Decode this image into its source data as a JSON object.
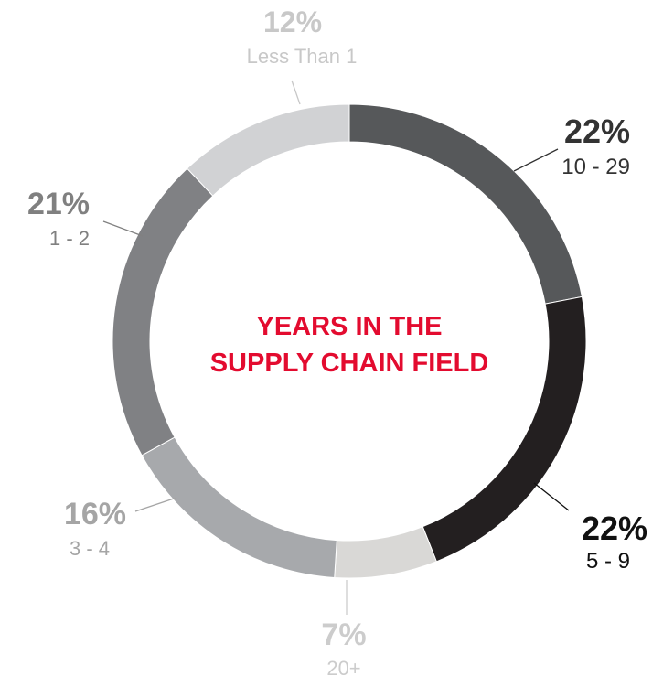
{
  "chart_data": {
    "type": "pie",
    "variant": "donut",
    "title": "YEARS IN THE SUPPLY CHAIN FIELD",
    "title_lines": [
      "YEARS IN THE",
      "SUPPLY CHAIN FIELD"
    ],
    "title_color": "#e30b2f",
    "slices": [
      {
        "label": "10 - 29",
        "value": 22,
        "value_label": "22%",
        "color": "#56585a",
        "label_color": "#333333",
        "pct_color": "#333333"
      },
      {
        "label": "5 - 9",
        "value": 22,
        "value_label": "22%",
        "color": "#231f20",
        "label_color": "#111111",
        "pct_color": "#111111"
      },
      {
        "label": "20+",
        "value": 7,
        "value_label": "7%",
        "color": "#d9d8d6",
        "label_color": "#cccccc",
        "pct_color": "#cccccc"
      },
      {
        "label": "3 - 4",
        "value": 16,
        "value_label": "16%",
        "color": "#a7a9ac",
        "label_color": "#a5a5a5",
        "pct_color": "#a5a5a5"
      },
      {
        "label": "1 - 2",
        "value": 21,
        "value_label": "21%",
        "color": "#808184",
        "label_color": "#808080",
        "pct_color": "#808080"
      },
      {
        "label": "Less Than 1",
        "value": 12,
        "value_label": "12%",
        "color": "#d1d2d4",
        "label_color": "#c8c8c8",
        "pct_color": "#c8c8c8"
      }
    ]
  }
}
